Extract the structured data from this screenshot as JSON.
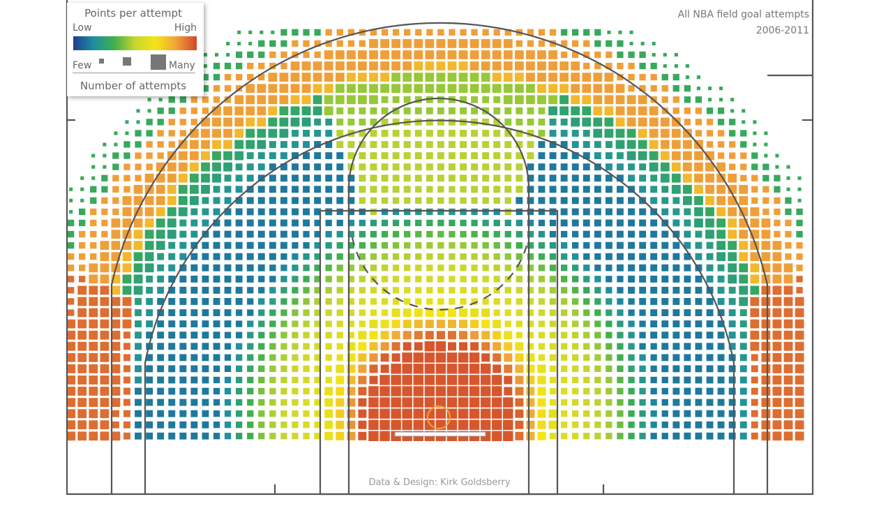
{
  "legend": {
    "title": "Points per attempt",
    "color_low_label": "Low",
    "color_high_label": "High",
    "size_few_label": "Few",
    "size_many_label": "Many",
    "size_caption": "Number of attempts"
  },
  "heading": {
    "line1": "All NBA field goal attempts",
    "line2": "2006-2011"
  },
  "credit": "Data & Design: Kirk Goldsberry",
  "colors": {
    "court_lines": "#555555",
    "rim": "#f0a33a",
    "backboard": "#ffffff",
    "scale": [
      "#1e3f8c",
      "#1e8fa3",
      "#3fb04a",
      "#c8d630",
      "#f5e416",
      "#f0a33a",
      "#d0462a"
    ]
  },
  "chart_data": {
    "type": "heatmap",
    "title": "All NBA field goal attempts",
    "subtitle": "2006-2011",
    "color_encoding": "Points per attempt",
    "size_encoding": "Number of attempts",
    "color_range": [
      "Low",
      "High"
    ],
    "size_range": [
      "Few",
      "Many"
    ],
    "zones": [
      {
        "zone": "restricted area",
        "points_per_attempt_level": "high",
        "attempts_level": "many"
      },
      {
        "zone": "short paint",
        "points_per_attempt_level": "medium-high",
        "attempts_level": "many"
      },
      {
        "zone": "free throw lane top",
        "points_per_attempt_level": "medium",
        "attempts_level": "many"
      },
      {
        "zone": "long two-point arc",
        "points_per_attempt_level": "low",
        "attempts_level": "many"
      },
      {
        "zone": "three-point corners",
        "points_per_attempt_level": "high",
        "attempts_level": "many"
      },
      {
        "zone": "three-point above the break",
        "points_per_attempt_level": "medium-high",
        "attempts_level": "many"
      },
      {
        "zone": "deep three-point",
        "points_per_attempt_level": "low",
        "attempts_level": "few"
      }
    ]
  }
}
